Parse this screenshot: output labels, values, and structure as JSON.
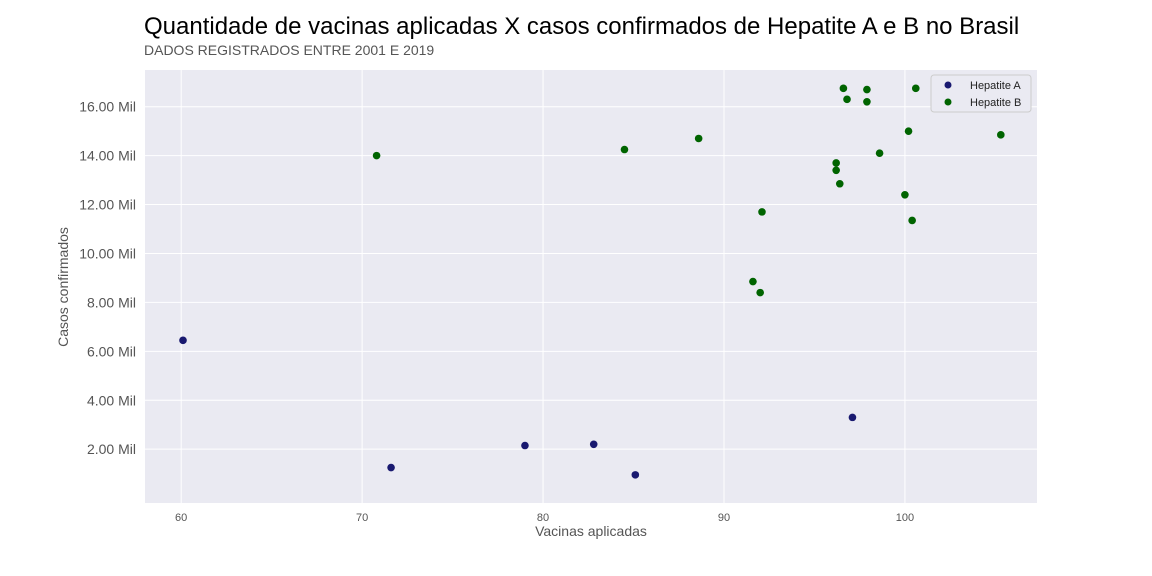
{
  "chart_data": {
    "type": "scatter",
    "title": "Quantidade de vacinas aplicadas X casos confirmados de Hepatite A e B no Brasil",
    "subtitle": "DADOS REGISTRADOS ENTRE 2001 E 2019",
    "xlabel": "Vacinas aplicadas",
    "ylabel": "Casos confirmados",
    "xlim": [
      58,
      107.3
    ],
    "ylim": [
      -200,
      17500
    ],
    "x_ticks": [
      60,
      70,
      80,
      90,
      100
    ],
    "x_tick_labels": [
      "60",
      "70",
      "80",
      "90",
      "100"
    ],
    "y_ticks": [
      2000,
      4000,
      6000,
      8000,
      10000,
      12000,
      14000,
      16000
    ],
    "y_tick_labels": [
      "2.00 Mil",
      "4.00 Mil",
      "6.00 Mil",
      "8.00 Mil",
      "10.00 Mil",
      "12.00 Mil",
      "14.00 Mil",
      "16.00 Mil"
    ],
    "grid": true,
    "legend_position": "top-right",
    "series": [
      {
        "name": "Hepatite A",
        "color": "#191970",
        "points": [
          {
            "x": 60.1,
            "y": 6450
          },
          {
            "x": 71.6,
            "y": 1250
          },
          {
            "x": 79.0,
            "y": 2150
          },
          {
            "x": 82.8,
            "y": 2200
          },
          {
            "x": 85.1,
            "y": 950
          },
          {
            "x": 97.1,
            "y": 3300
          }
        ]
      },
      {
        "name": "Hepatite B",
        "color": "#006400",
        "points": [
          {
            "x": 70.8,
            "y": 14000
          },
          {
            "x": 84.5,
            "y": 14250
          },
          {
            "x": 88.6,
            "y": 14700
          },
          {
            "x": 92.1,
            "y": 11700
          },
          {
            "x": 91.6,
            "y": 8850
          },
          {
            "x": 92.0,
            "y": 8400
          },
          {
            "x": 96.2,
            "y": 13700
          },
          {
            "x": 96.2,
            "y": 13400
          },
          {
            "x": 96.4,
            "y": 12850
          },
          {
            "x": 96.6,
            "y": 16750
          },
          {
            "x": 96.8,
            "y": 16300
          },
          {
            "x": 97.9,
            "y": 16700
          },
          {
            "x": 97.9,
            "y": 16200
          },
          {
            "x": 98.6,
            "y": 14100
          },
          {
            "x": 100.0,
            "y": 12400
          },
          {
            "x": 100.2,
            "y": 15000
          },
          {
            "x": 100.4,
            "y": 11350
          },
          {
            "x": 100.6,
            "y": 16750
          },
          {
            "x": 105.3,
            "y": 14850
          }
        ]
      }
    ]
  }
}
